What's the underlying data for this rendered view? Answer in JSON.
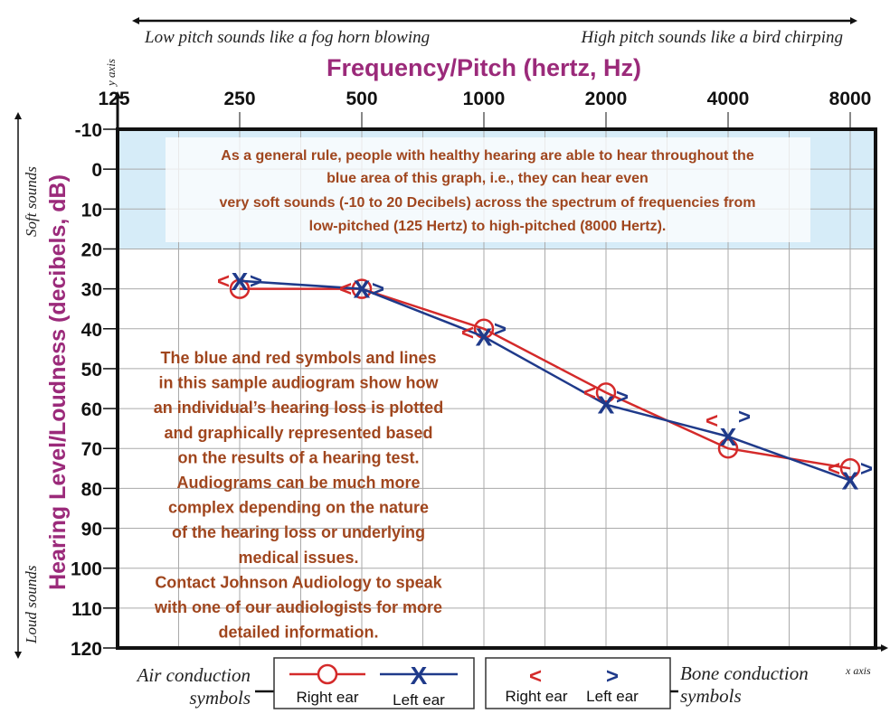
{
  "chart_data": {
    "type": "line",
    "title": "Frequency/Pitch (hertz, Hz)",
    "xlabel": "Frequency/Pitch (hertz, Hz)",
    "ylabel": "Hearing Level/Loudness (decibels, dB)",
    "x_scale": "log2",
    "y_inverted": true,
    "x_ticks": [
      "125",
      "250",
      "500",
      "1000",
      "2000",
      "4000",
      "8000"
    ],
    "y_ticks": [
      "-10",
      "0",
      "10",
      "20",
      "30",
      "40",
      "50",
      "60",
      "70",
      "80",
      "90",
      "100",
      "110",
      "120"
    ],
    "xlim": [
      125,
      8000
    ],
    "ylim": [
      -10,
      120
    ],
    "grid": true,
    "normal_band": {
      "from": -10,
      "to": 20,
      "color": "#d6ecf8"
    },
    "x": [
      250,
      500,
      1000,
      2000,
      4000,
      8000
    ],
    "series": [
      {
        "name": "Right ear",
        "kind": "air",
        "symbol": "O",
        "color": "#d42a2a",
        "values": [
          30,
          30,
          40,
          56,
          70,
          75
        ]
      },
      {
        "name": "Left ear",
        "kind": "air",
        "symbol": "X",
        "color": "#1f3a8a",
        "values": [
          28,
          30,
          42,
          59,
          67,
          78
        ]
      },
      {
        "name": "Right ear",
        "kind": "bone",
        "symbol": "<",
        "color": "#d42a2a",
        "values": [
          28,
          30,
          41,
          56,
          63,
          75
        ]
      },
      {
        "name": "Left ear",
        "kind": "bone",
        "symbol": ">",
        "color": "#1f3a8a",
        "values": [
          28,
          30,
          40,
          57,
          62,
          75
        ]
      }
    ]
  },
  "top": {
    "low_pitch": "Low pitch sounds like a fog horn blowing",
    "high_pitch": "High pitch sounds like a bird chirping",
    "y_axis_tag": "y axis",
    "x_axis_tag": "x axis"
  },
  "side": {
    "soft": "Soft sounds",
    "loud": "Loud sounds"
  },
  "notes": {
    "band": [
      "As a general rule, people with healthy hearing are able to hear throughout the",
      "blue area of this graph, i.e., they can hear even",
      "very soft sounds (-10 to 20 Decibels) across the spectrum of frequencies from",
      "low-pitched (125 Hertz) to high-pitched (8000 Hertz)."
    ],
    "body": [
      "The blue and red symbols and lines",
      "in this sample audiogram show how",
      "an individual’s hearing loss is plotted",
      "and graphically represented based",
      "on the results of a hearing test.",
      "Audiograms can be much more",
      "complex depending on the nature",
      "of the hearing loss or underlying",
      "medical issues.",
      "Contact Johnson Audiology to speak",
      "with one of our audiologists for more",
      "detailed information."
    ]
  },
  "legend": {
    "air_line1": "Air conduction",
    "air_line2": "symbols",
    "bone_line1": "Bone conduction",
    "bone_line2": "symbols",
    "right_ear": "Right ear",
    "left_ear": "Left ear",
    "bone_right_symbol": "<",
    "bone_left_symbol": ">"
  },
  "colors": {
    "right": "#d42a2a",
    "left": "#1f3a8a",
    "title": "#9b2a7a",
    "note": "#a0461e"
  }
}
